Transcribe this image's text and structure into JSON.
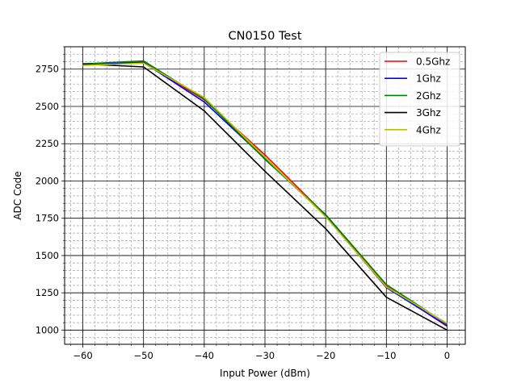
{
  "chart_data": {
    "type": "line",
    "title": "CN0150 Test",
    "xlabel": "Input Power (dBm)",
    "ylabel": "ADC Code",
    "xlim": [
      -63,
      3
    ],
    "ylim": [
      905,
      2900
    ],
    "xticks": [
      -60,
      -50,
      -40,
      -30,
      -20,
      -10,
      0
    ],
    "xtick_labels": [
      "−60",
      "−50",
      "−40",
      "−30",
      "−20",
      "−10",
      "0"
    ],
    "yticks": [
      1000,
      1250,
      1500,
      1750,
      2000,
      2250,
      2500,
      2750
    ],
    "ytick_labels": [
      "1000",
      "1250",
      "1500",
      "1750",
      "2000",
      "2250",
      "2500",
      "2750"
    ],
    "grid": "major and minor",
    "legend_position": "upper right",
    "x": [
      -60,
      -50,
      -40,
      -30,
      -20,
      -10,
      0
    ],
    "series": [
      {
        "name": "0.5Ghz",
        "color": "#ff0000",
        "values": [
          2785,
          2795,
          2545,
          2175,
          1770,
          1295,
          1025
        ]
      },
      {
        "name": "1Ghz",
        "color": "#0000ff",
        "values": [
          2785,
          2795,
          2530,
          2150,
          1765,
          1285,
          1030
        ]
      },
      {
        "name": "2Ghz",
        "color": "#008000",
        "values": [
          2785,
          2805,
          2550,
          2145,
          1775,
          1305,
          1040
        ]
      },
      {
        "name": "3Ghz",
        "color": "#000000",
        "values": [
          2785,
          2765,
          2470,
          2065,
          1680,
          1220,
          1000
        ]
      },
      {
        "name": "4Ghz",
        "color": "#bfbf00",
        "values": [
          2775,
          2790,
          2560,
          2160,
          1760,
          1290,
          1045
        ]
      }
    ]
  }
}
